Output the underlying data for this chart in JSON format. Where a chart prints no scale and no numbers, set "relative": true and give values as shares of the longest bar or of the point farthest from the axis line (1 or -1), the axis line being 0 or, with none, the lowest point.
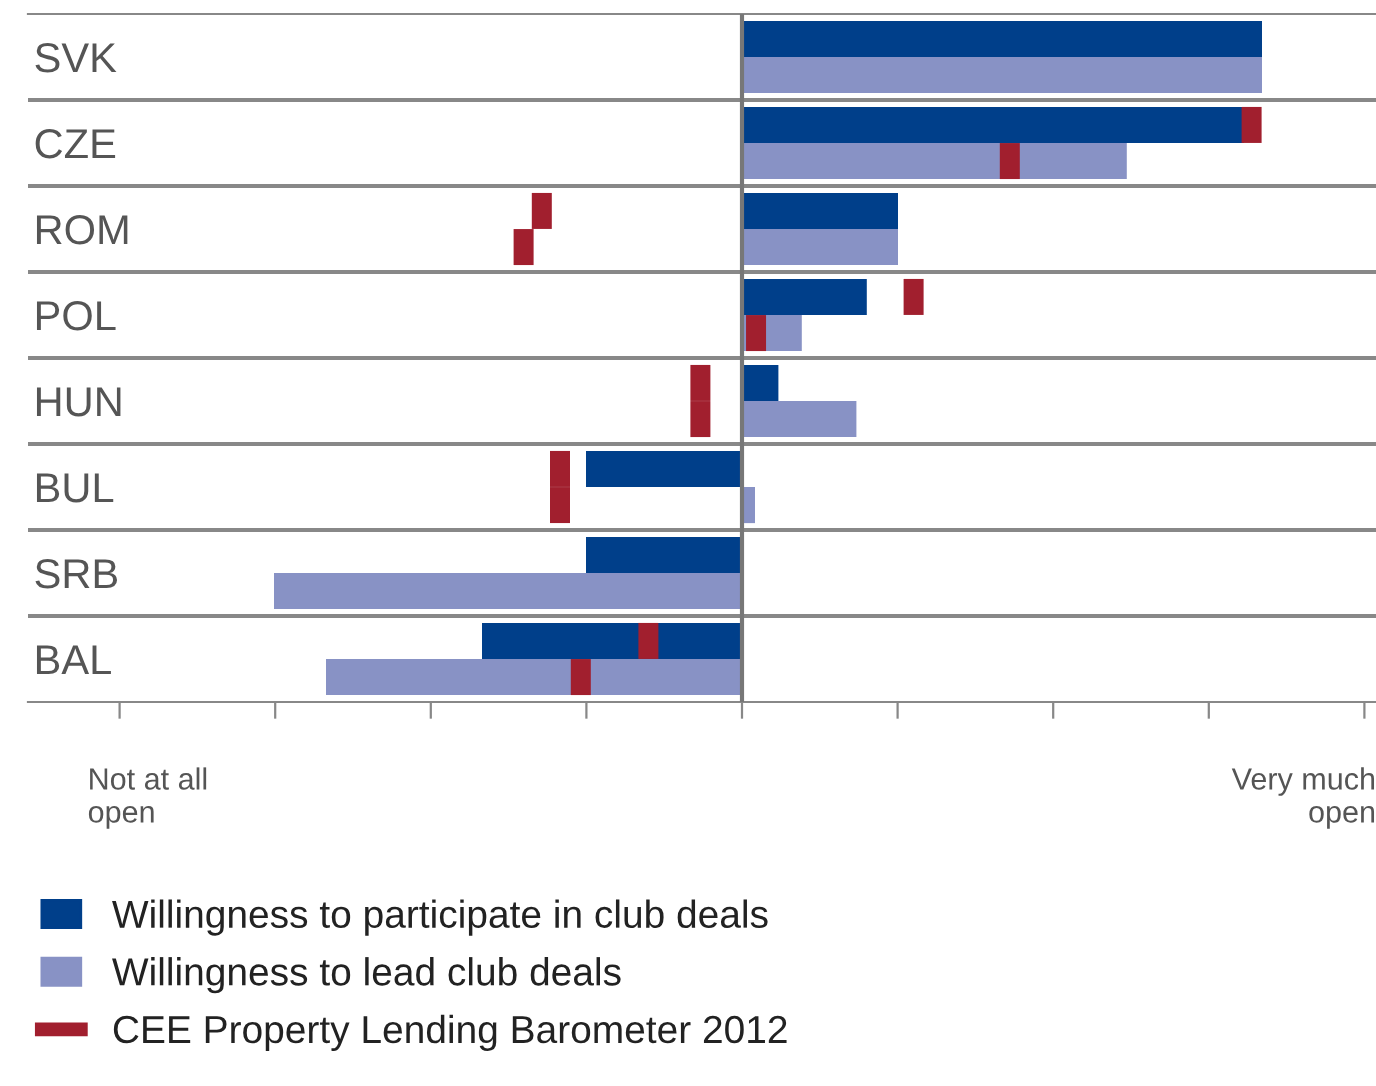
{
  "chart_data": {
    "type": "bar",
    "orientation": "horizontal",
    "relative": true,
    "categories": [
      "SVK",
      "CZE",
      "ROM",
      "POL",
      "HUN",
      "BUL",
      "SRB",
      "BAL"
    ],
    "series": [
      {
        "name": "Willingness to participate in club deals",
        "color": "#003f8a",
        "values": [
          1,
          0.965,
          0.3,
          0.24,
          0.07,
          -0.3,
          -0.3,
          -0.5
        ]
      },
      {
        "name": "Willingness to lead club deals",
        "color": "#8892c5",
        "values": [
          1,
          0.74,
          0.3,
          0.115,
          0.22,
          0.025,
          -0.9,
          -0.8
        ]
      },
      {
        "name": "CEE Property Lending Barometer 2012",
        "type": "scatter",
        "marker": "square",
        "color": "#a11f2e",
        "values": [
          null,
          0.98,
          -0.385,
          0.33,
          -0.08,
          -0.35,
          null,
          -0.18
        ]
      },
      {
        "type": "scatter",
        "marker": "square",
        "color": "#a11f2e",
        "values": [
          null,
          0.515,
          -0.42,
          0.027,
          -0.08,
          -0.35,
          null,
          -0.31
        ]
      }
    ],
    "annotations": [
      "Not at all\nopen",
      "Very much\nopen"
    ],
    "grid": false,
    "legend": "bottom"
  }
}
